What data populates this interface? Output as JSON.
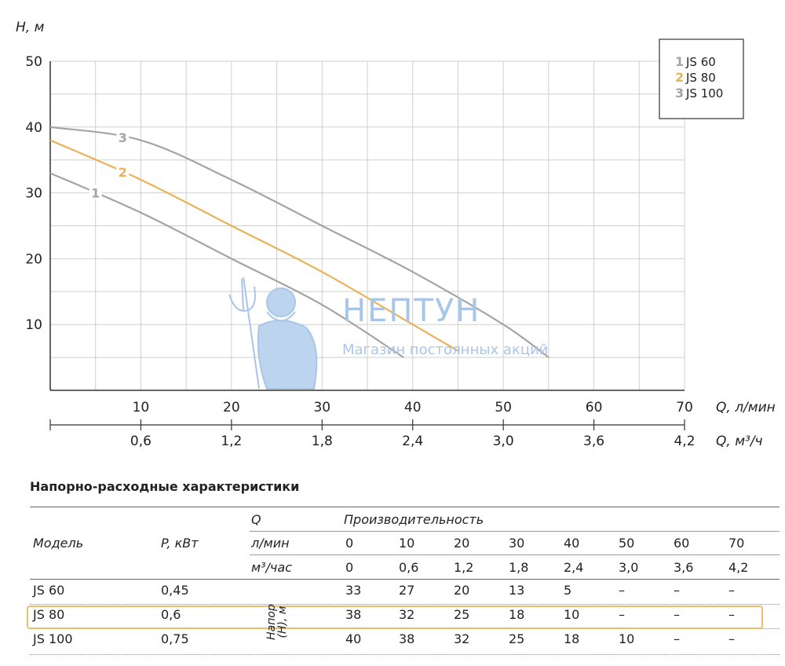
{
  "chart_data": {
    "type": "line",
    "ylabel": "Н, м",
    "xlabel": "Q, л/мин",
    "x2label": "Q, м³/ч",
    "ylim": [
      0,
      50
    ],
    "xlim": [
      0,
      70
    ],
    "yticks": [
      10,
      20,
      30,
      40,
      50
    ],
    "xticks": [
      10,
      20,
      30,
      40,
      50,
      60,
      70
    ],
    "x2ticks": [
      "0,6",
      "1,2",
      "1,8",
      "2,4",
      "3,0",
      "3,6",
      "4,2"
    ],
    "grid": true,
    "legend_position": "top-right",
    "series": [
      {
        "id": "1",
        "name": "JS 60",
        "color": "#a4a4a4",
        "x": [
          0,
          10,
          20,
          30,
          39
        ],
        "y": [
          33,
          27,
          20,
          13,
          5
        ]
      },
      {
        "id": "2",
        "name": "JS 80",
        "color": "#e9b25a",
        "x": [
          0,
          10,
          20,
          30,
          40,
          45
        ],
        "y": [
          38,
          32,
          25,
          18,
          10,
          6
        ]
      },
      {
        "id": "3",
        "name": "JS 100",
        "color": "#a4a4a4",
        "x": [
          0,
          10,
          20,
          30,
          40,
          50,
          55
        ],
        "y": [
          40,
          38,
          32,
          25,
          18,
          10,
          5
        ]
      }
    ]
  },
  "watermark": {
    "brand": "НЕПТУН",
    "tagline": "Магазин постоянных акций"
  },
  "table": {
    "title": "Напорно-расходные характеристики",
    "header": {
      "model": "Модель",
      "power": "P, кВт",
      "q": "Q",
      "productivity": "Производительность",
      "unit_lmin": "л/мин",
      "unit_m3": "м³/час",
      "flow_lmin": [
        "0",
        "10",
        "20",
        "30",
        "40",
        "50",
        "60",
        "70"
      ],
      "flow_m3": [
        "0",
        "0,6",
        "1,2",
        "1,8",
        "2,4",
        "3,0",
        "3,6",
        "4,2"
      ]
    },
    "head_label": "Напор\n(Н), м",
    "rows": [
      {
        "model": "JS 60",
        "power": "0,45",
        "values": [
          "33",
          "27",
          "20",
          "13",
          "5",
          "–",
          "–",
          "–"
        ]
      },
      {
        "model": "JS 80",
        "power": "0,6",
        "values": [
          "38",
          "32",
          "25",
          "18",
          "10",
          "–",
          "–",
          "–"
        ]
      },
      {
        "model": "JS 100",
        "power": "0,75",
        "values": [
          "40",
          "38",
          "32",
          "25",
          "18",
          "10",
          "–",
          "–"
        ]
      }
    ]
  }
}
